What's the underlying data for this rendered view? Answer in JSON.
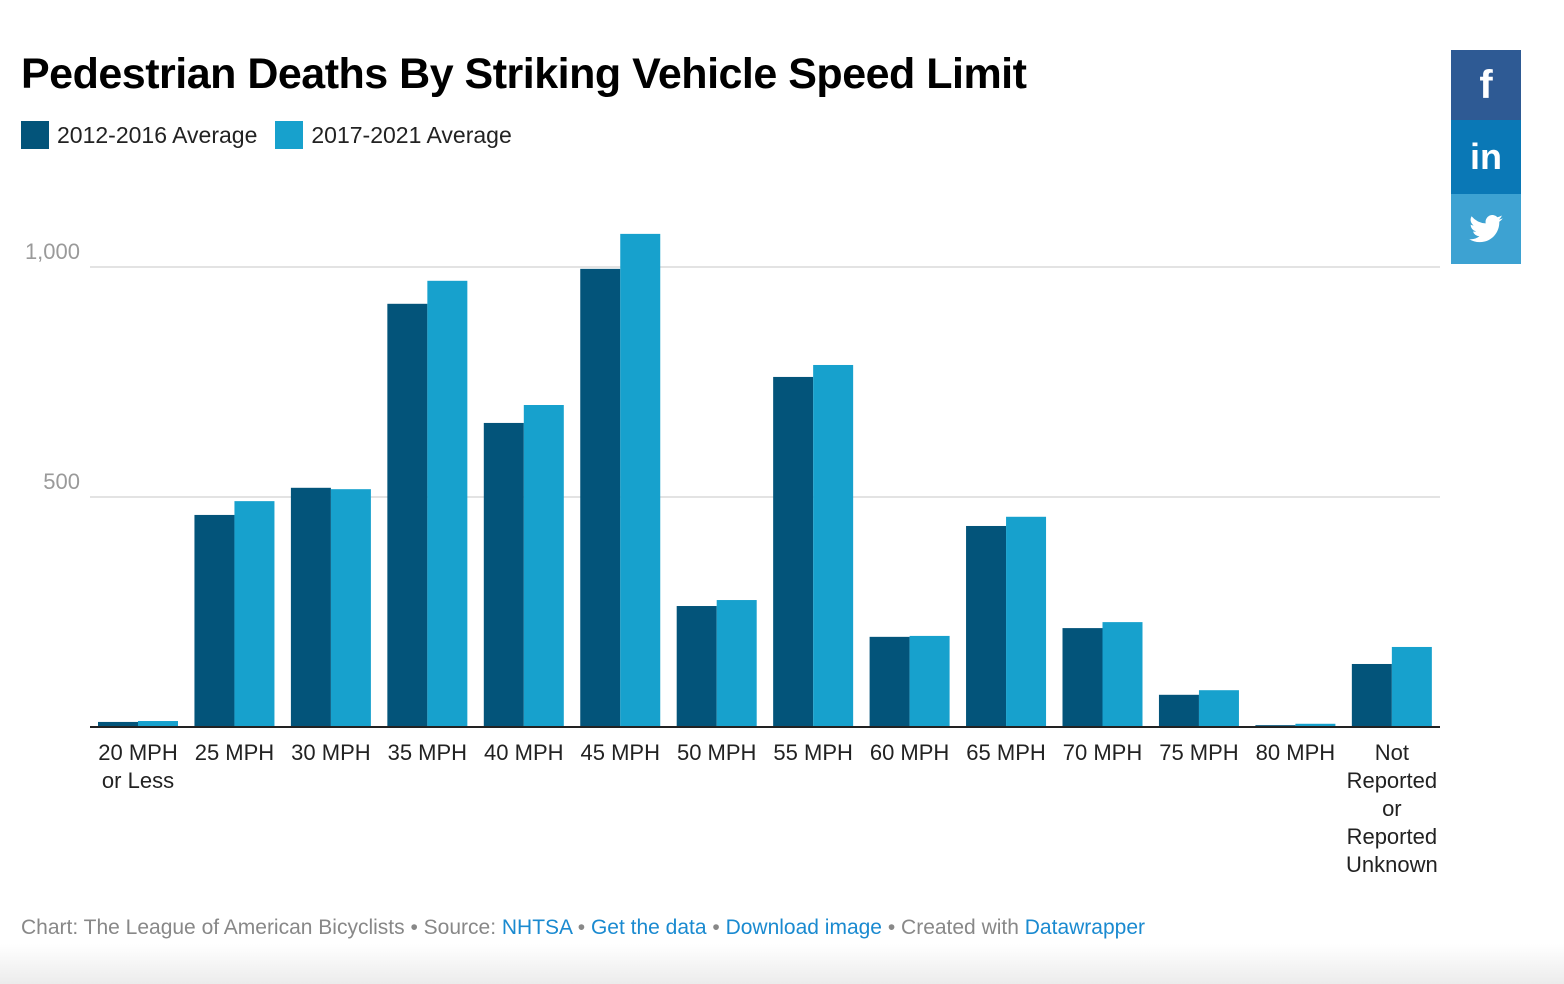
{
  "chart_data": {
    "type": "bar",
    "title": "Pedestrian Deaths By Striking Vehicle Speed Limit",
    "xlabel": "",
    "ylabel": "",
    "ylim": [
      0,
      1150
    ],
    "yticks": [
      500,
      1000
    ],
    "ytick_labels": [
      "500",
      "1,000"
    ],
    "grid": true,
    "legend_position": "top-left",
    "categories": [
      "20 MPH or Less",
      "25 MPH",
      "30 MPH",
      "35 MPH",
      "40 MPH",
      "45 MPH",
      "50 MPH",
      "55 MPH",
      "60 MPH",
      "65 MPH",
      "70 MPH",
      "75 MPH",
      "80 MPH",
      "Not Reported or Reported Unknown"
    ],
    "category_lines": [
      [
        "20 MPH",
        "or Less"
      ],
      [
        "25 MPH"
      ],
      [
        "30 MPH"
      ],
      [
        "35 MPH"
      ],
      [
        "40 MPH"
      ],
      [
        "45 MPH"
      ],
      [
        "50 MPH"
      ],
      [
        "55 MPH"
      ],
      [
        "60 MPH"
      ],
      [
        "65 MPH"
      ],
      [
        "70 MPH"
      ],
      [
        "75 MPH"
      ],
      [
        "80 MPH"
      ],
      [
        "Not",
        "Reported",
        "or",
        "Reported",
        "Unknown"
      ]
    ],
    "series": [
      {
        "name": "2012-2016 Average",
        "color": "#03547a",
        "values": [
          11,
          461,
          520,
          920,
          661,
          996,
          263,
          761,
          196,
          437,
          215,
          70,
          4,
          137
        ]
      },
      {
        "name": "2017-2021 Average",
        "color": "#17a1cd",
        "values": [
          13,
          491,
          517,
          970,
          700,
          1072,
          276,
          787,
          198,
          457,
          228,
          80,
          7,
          174
        ]
      }
    ]
  },
  "footer": {
    "chart_credit": "Chart: The League of American Bicyclists",
    "source_label": "Source:",
    "source_link": "NHTSA",
    "get_data": "Get the data",
    "download": "Download image",
    "created_with": "Created with",
    "datawrapper": "Datawrapper",
    "sep": " • "
  },
  "social": {
    "facebook": "f",
    "linkedin": "in",
    "colors": {
      "facebook": "#2e5a94",
      "linkedin": "#0a78b6",
      "twitter": "#3da2d2"
    }
  }
}
